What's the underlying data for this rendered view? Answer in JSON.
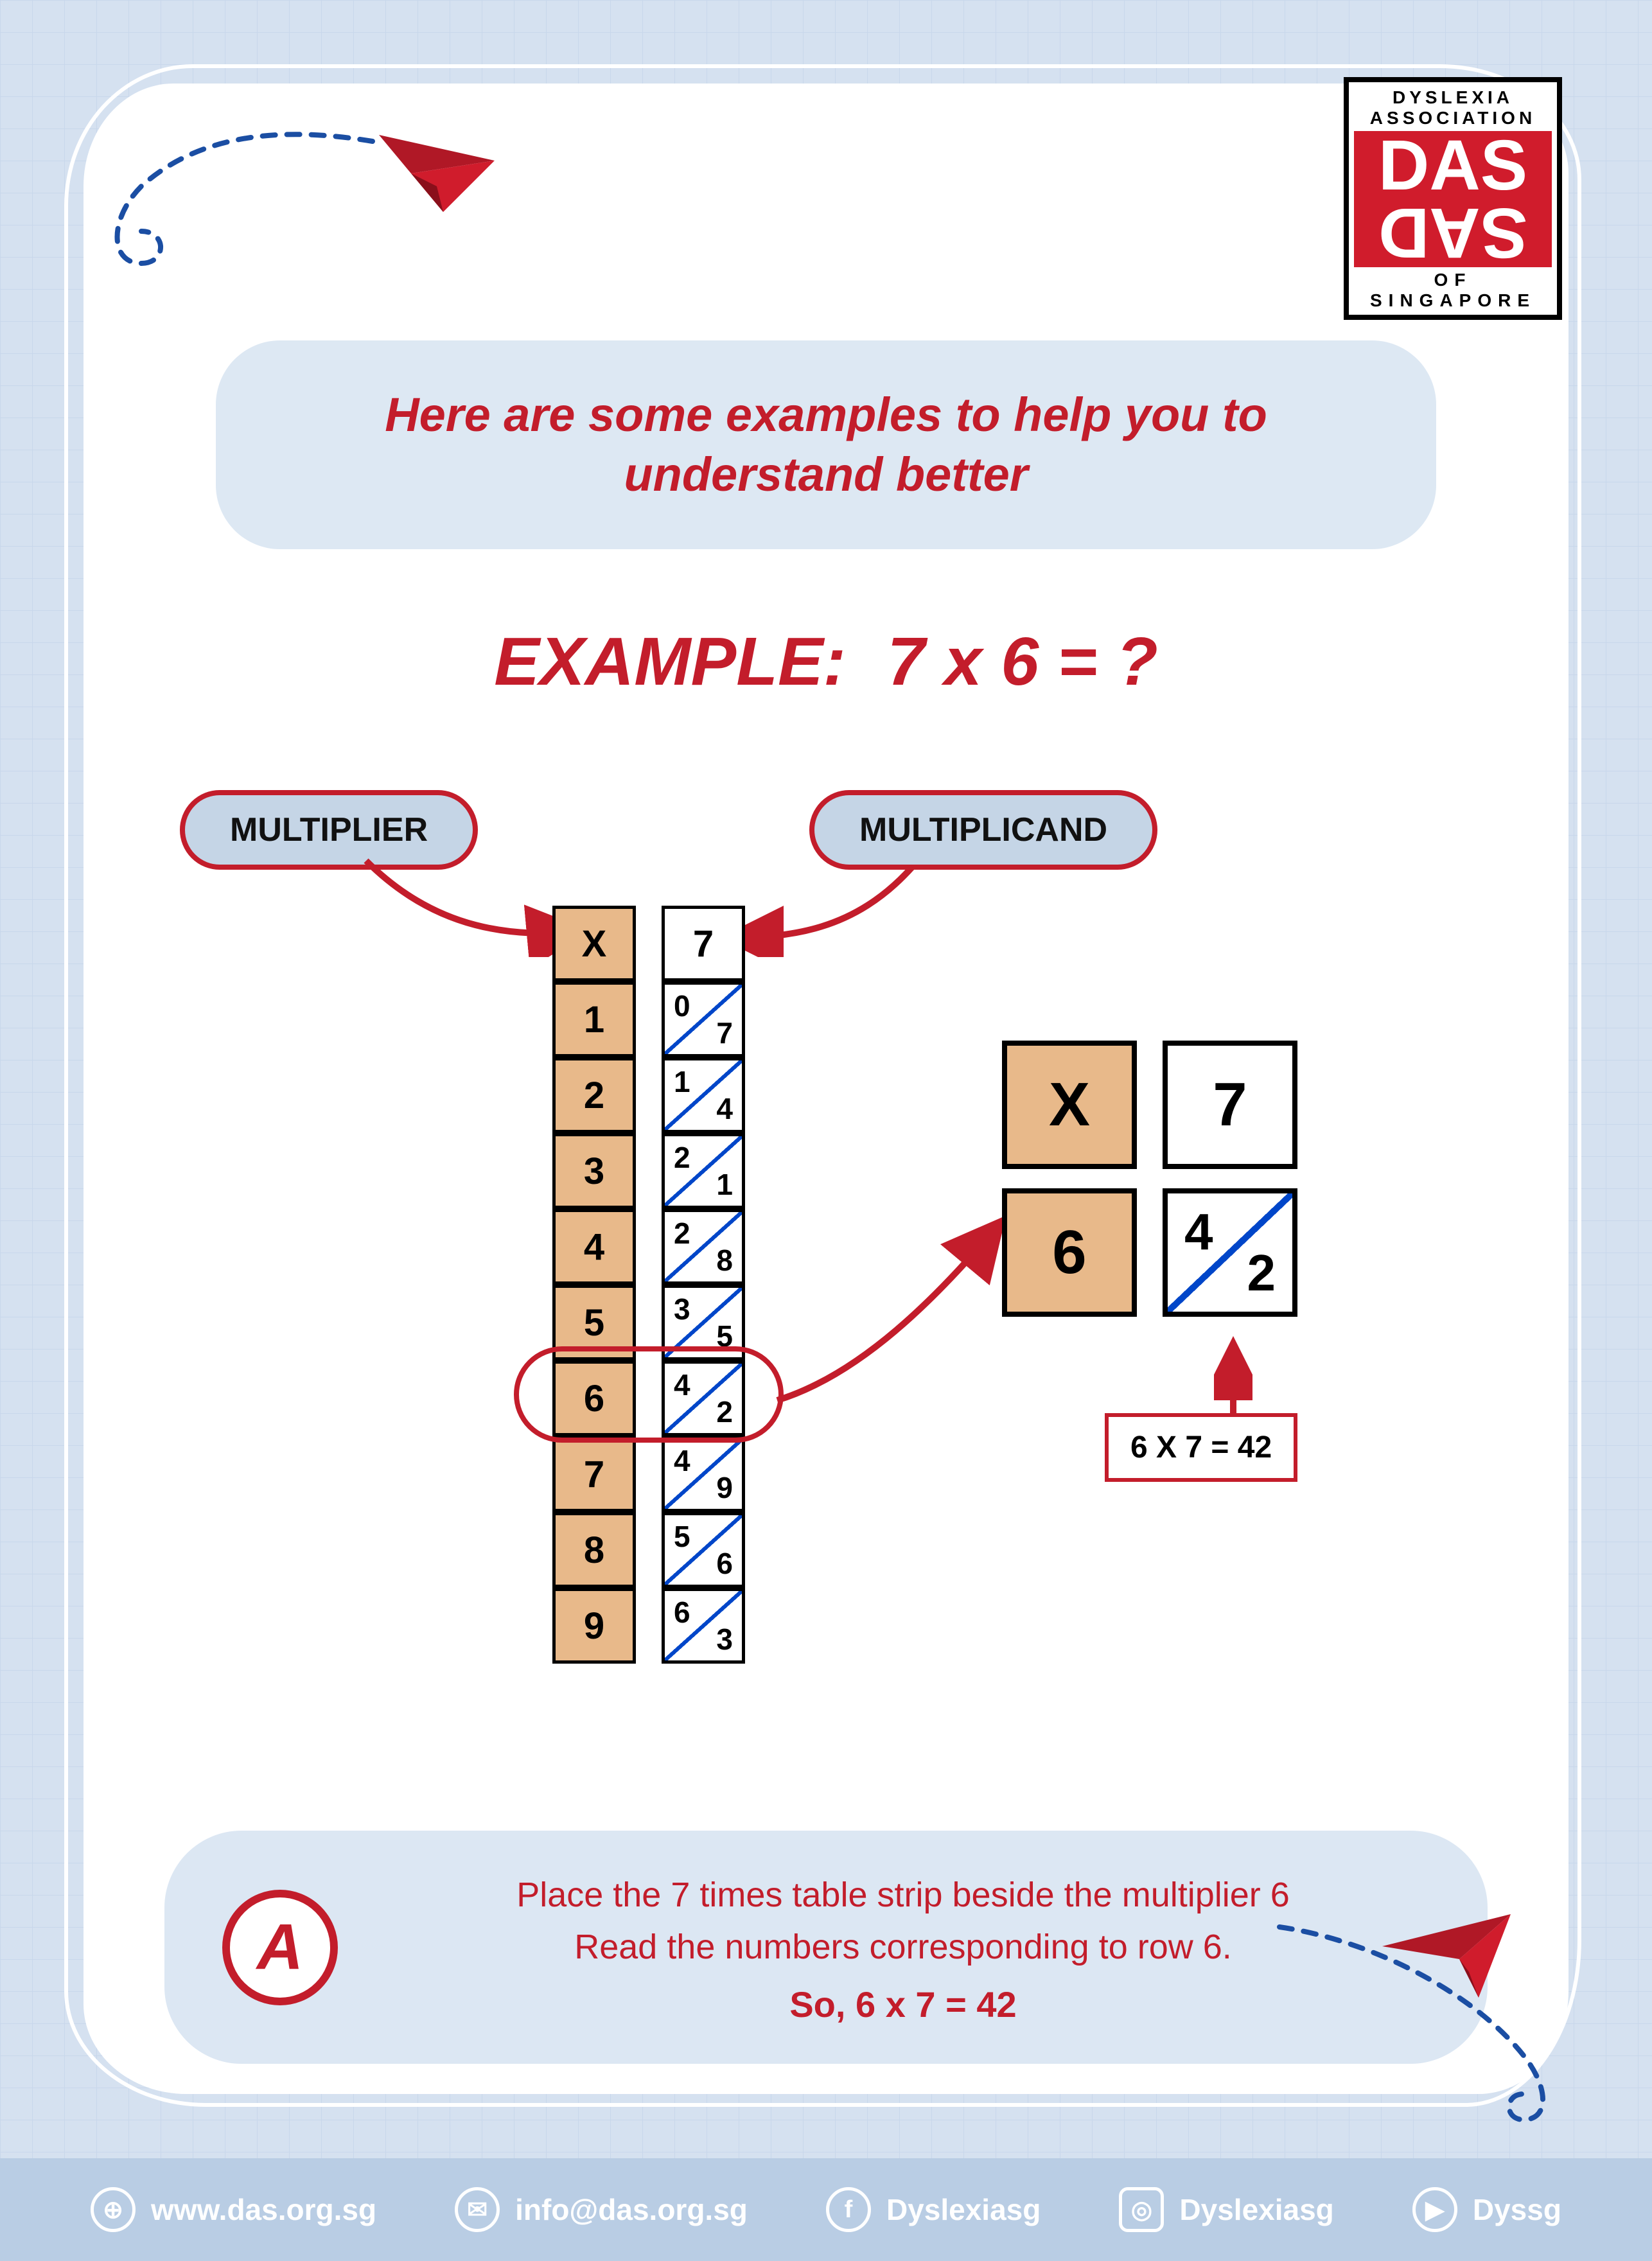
{
  "colors": {
    "background": "#d5e1f0",
    "grid": "#c8d7eb",
    "card": "#ffffff",
    "accent_red": "#c31d2b",
    "pill_bg": "#dde8f3",
    "term_pill_bg": "#c5d5e6",
    "cell_orange": "#e8b98a",
    "diag_blue": "#0046c9",
    "footer_bg": "#b9cde4"
  },
  "logo": {
    "top": "DYSLEXIA ASSOCIATION",
    "mid": "DAS",
    "bottom": "OF SINGAPORE"
  },
  "intro": "Here are some examples to help you to understand better",
  "example": {
    "label": "EXAMPLE:",
    "equation": "7 x 6 = ?"
  },
  "terms": {
    "multiplier": "MULTIPLIER",
    "multiplicand": "MULTIPLICAND"
  },
  "multiplier_column": [
    "X",
    "1",
    "2",
    "3",
    "4",
    "5",
    "6",
    "7",
    "8",
    "9"
  ],
  "multiplicand_column": {
    "header": "7",
    "rows": [
      {
        "tl": "0",
        "br": "7"
      },
      {
        "tl": "1",
        "br": "4"
      },
      {
        "tl": "2",
        "br": "1"
      },
      {
        "tl": "2",
        "br": "8"
      },
      {
        "tl": "3",
        "br": "5"
      },
      {
        "tl": "4",
        "br": "2"
      },
      {
        "tl": "4",
        "br": "9"
      },
      {
        "tl": "5",
        "br": "6"
      },
      {
        "tl": "6",
        "br": "3"
      }
    ]
  },
  "highlight_row_index": 6,
  "zoom": {
    "top_left": "X",
    "top_right": "7",
    "bottom_left": "6",
    "bottom_right": {
      "tl": "4",
      "br": "2"
    }
  },
  "result_text": "6 X 7 = 42",
  "instruction": {
    "letter": "A",
    "line1": "Place the 7 times table strip beside the multiplier 6",
    "line2": "Read the numbers corresponding to row 6.",
    "so": "So, 6 x 7 = 42"
  },
  "footer": {
    "web": "www.das.org.sg",
    "email": "info@das.org.sg",
    "fb": "Dyslexiasg",
    "ig": "Dyslexiasg",
    "yt": "Dyssg"
  }
}
